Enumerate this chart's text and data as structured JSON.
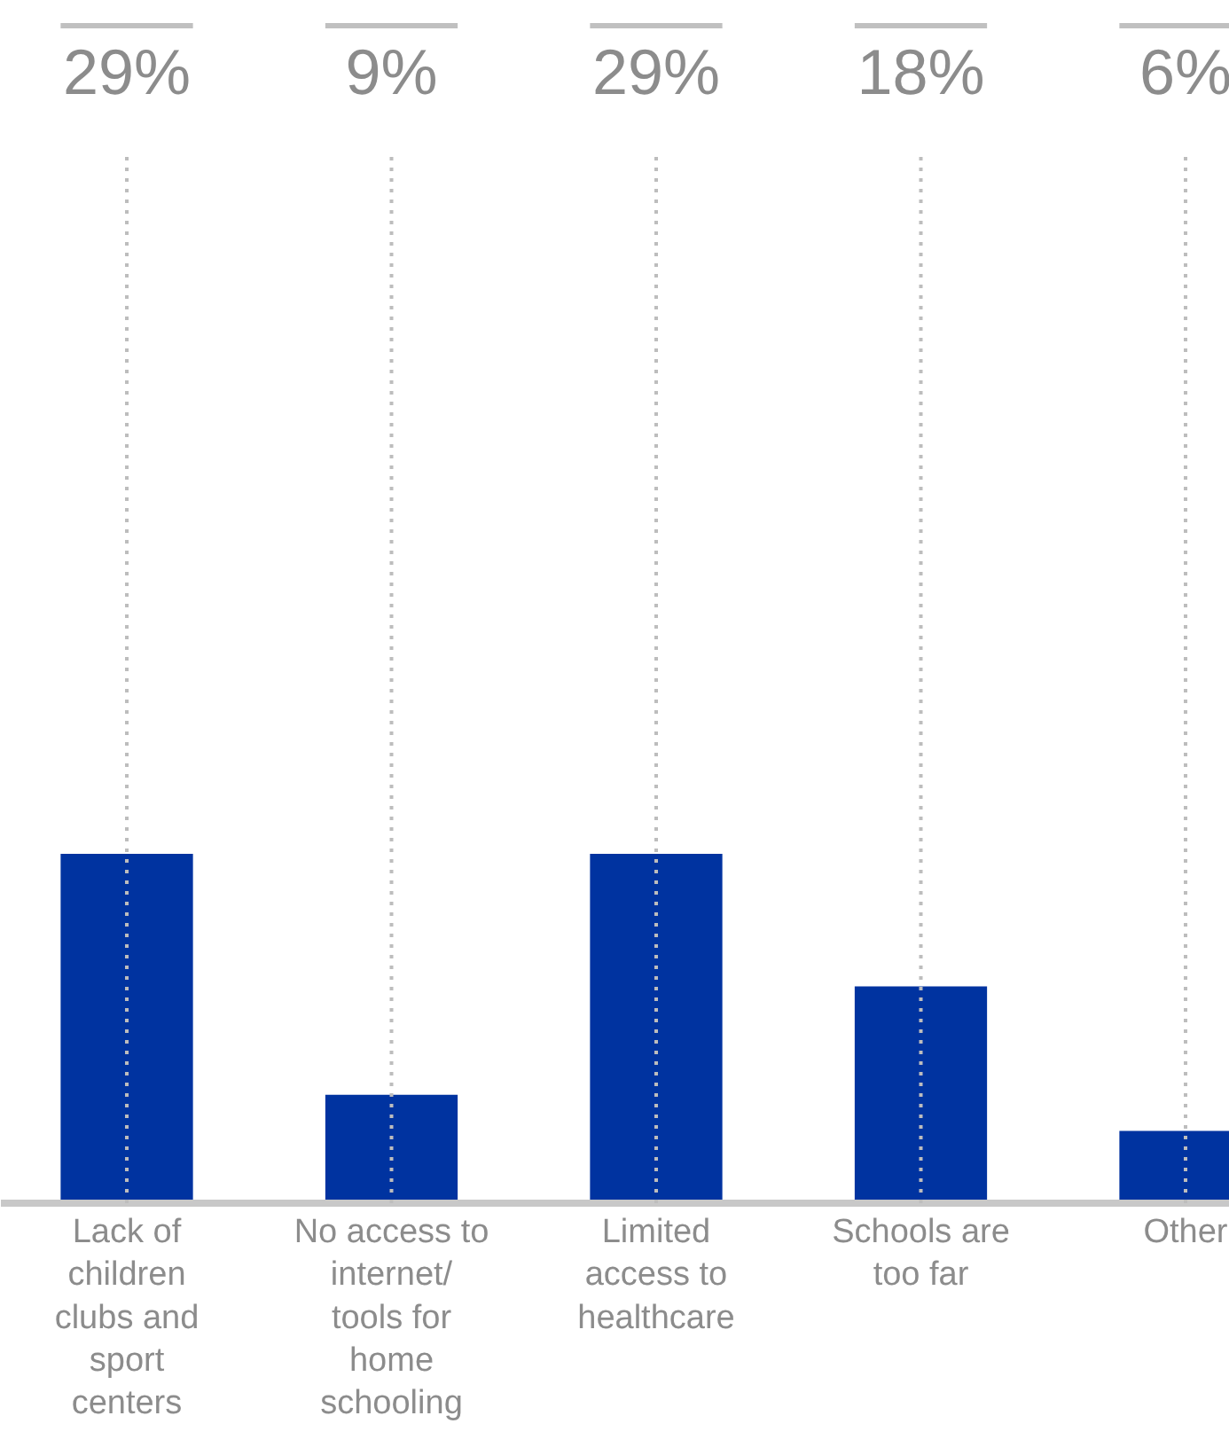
{
  "chart_data": {
    "type": "bar",
    "categories": [
      "Lack of children clubs and sport centers",
      "No access to internet/ tools for home schooling",
      "Limited access to healthcare",
      "Schools are too far",
      "Other"
    ],
    "values": [
      29,
      9,
      29,
      18,
      6
    ],
    "value_labels": [
      "29%",
      "9%",
      "29%",
      "18%",
      "6%"
    ],
    "color": "#0033a0",
    "grid": "x"
  }
}
